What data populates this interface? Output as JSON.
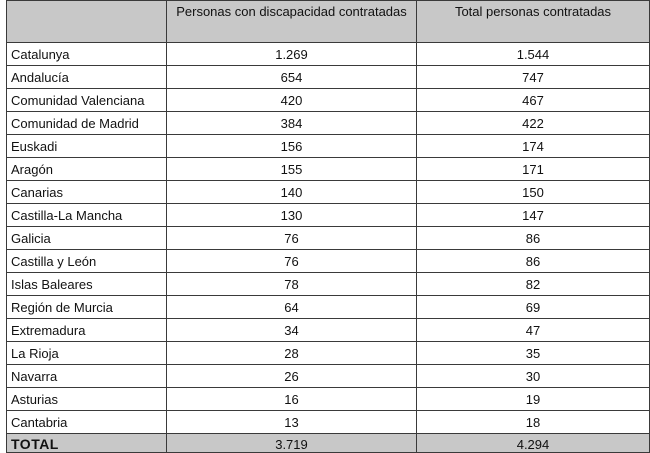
{
  "table": {
    "headers": [
      "",
      "Personas con discapacidad contratadas",
      "Total personas contratadas"
    ],
    "rows": [
      [
        "Catalunya",
        "1.269",
        "1.544"
      ],
      [
        "Andalucía",
        "654",
        "747"
      ],
      [
        "Comunidad Valenciana",
        "420",
        "467"
      ],
      [
        "Comunidad de Madrid",
        "384",
        "422"
      ],
      [
        "Euskadi",
        "156",
        "174"
      ],
      [
        "Aragón",
        "155",
        "171"
      ],
      [
        "Canarias",
        "140",
        "150"
      ],
      [
        "Castilla-La Mancha",
        "130",
        "147"
      ],
      [
        "Galicia",
        "76",
        "86"
      ],
      [
        "Castilla y León",
        "76",
        "86"
      ],
      [
        "Islas Baleares",
        "78",
        "82"
      ],
      [
        "Región de Murcia",
        "64",
        "69"
      ],
      [
        "Extremadura",
        "34",
        "47"
      ],
      [
        "La Rioja",
        "28",
        "35"
      ],
      [
        "Navarra",
        "26",
        "30"
      ],
      [
        "Asturias",
        "16",
        "19"
      ],
      [
        "Cantabria",
        "13",
        "18"
      ]
    ],
    "total": [
      "TOTAL",
      "3.719",
      "4.294"
    ]
  }
}
